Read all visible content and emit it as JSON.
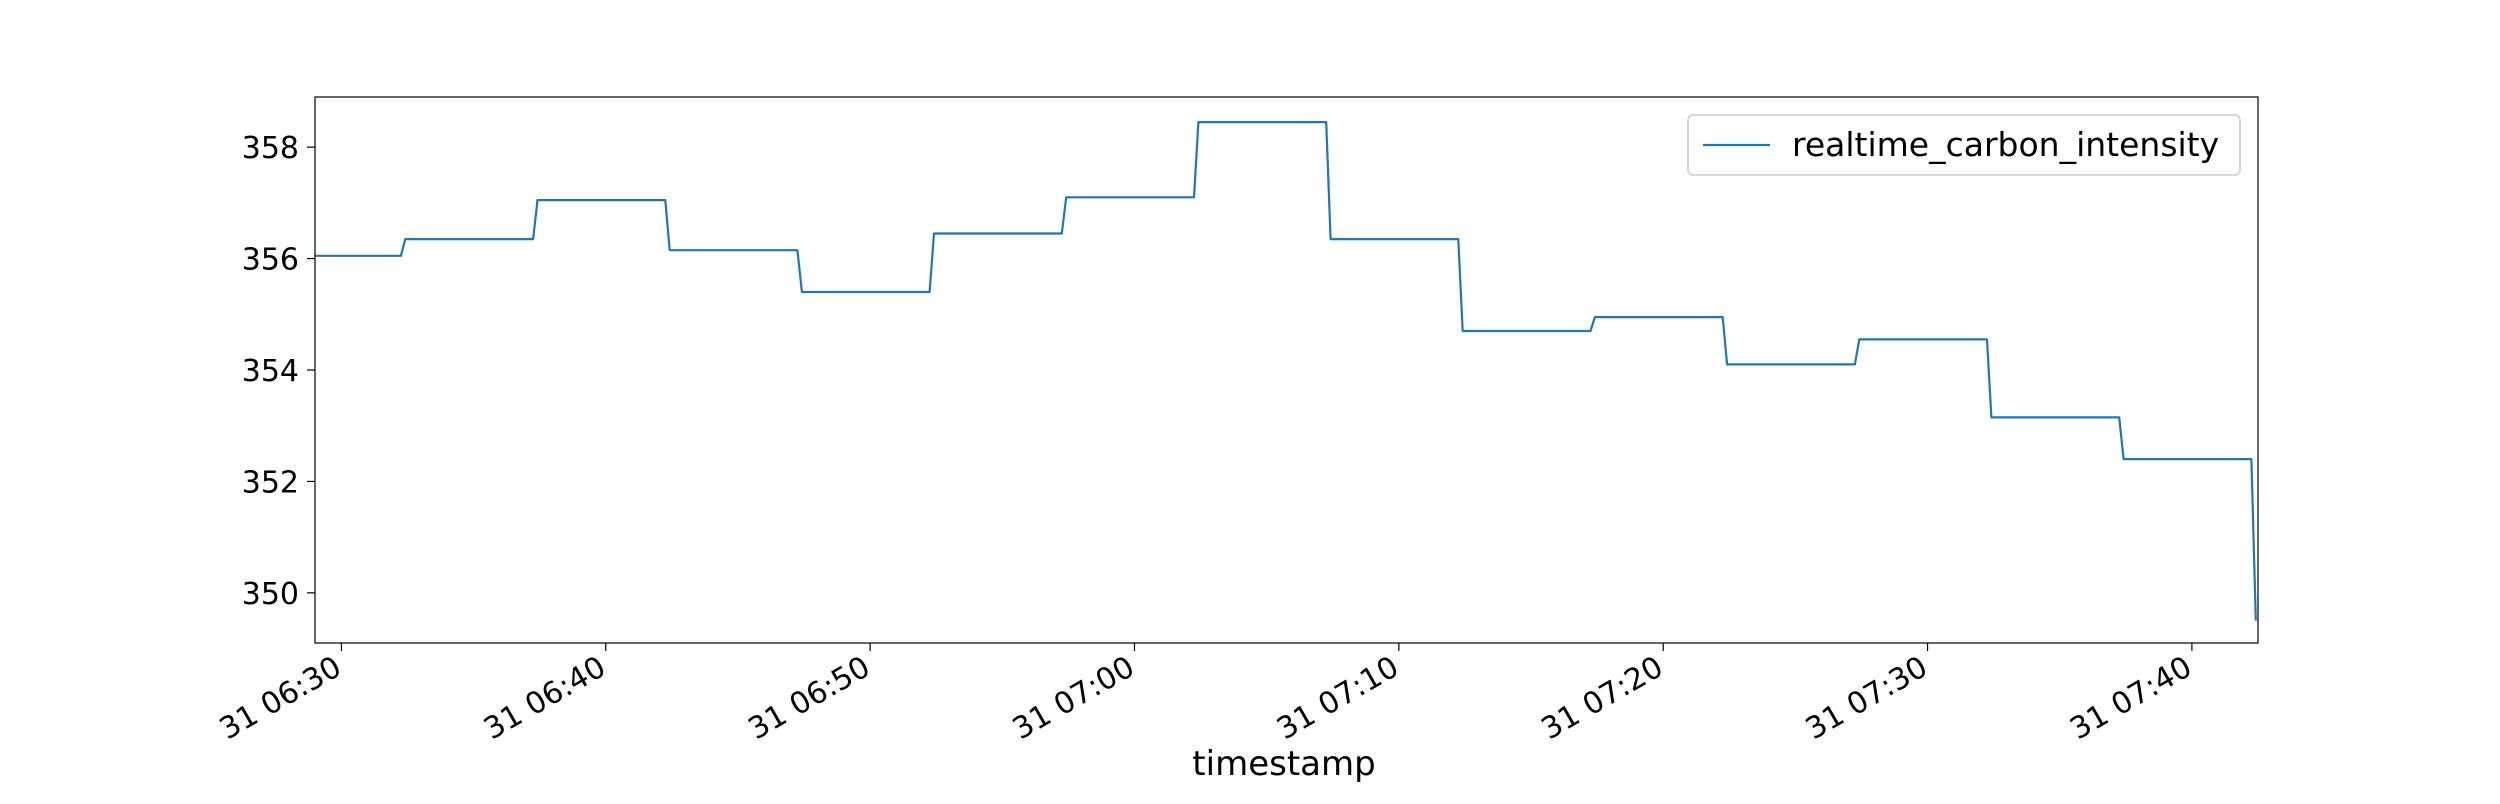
{
  "chart_data": {
    "type": "line",
    "xlabel": "timestamp",
    "ylabel": "",
    "title": "",
    "legend": {
      "placement": "top-right",
      "entries": [
        "realtime_carbon_intensity"
      ]
    },
    "grid": false,
    "xlim": [
      "31 06:29:00",
      "31 07:42:30"
    ],
    "ylim": [
      349.1,
      358.9
    ],
    "x_ticks": [
      {
        "t": "31 06:30:00",
        "label": "31 06:30"
      },
      {
        "t": "31 06:40:00",
        "label": "31 06:40"
      },
      {
        "t": "31 06:50:00",
        "label": "31 06:50"
      },
      {
        "t": "31 07:00:00",
        "label": "31 07:00"
      },
      {
        "t": "31 07:10:00",
        "label": "31 07:10"
      },
      {
        "t": "31 07:20:00",
        "label": "31 07:20"
      },
      {
        "t": "31 07:30:00",
        "label": "31 07:30"
      },
      {
        "t": "31 07:40:00",
        "label": "31 07:40"
      }
    ],
    "y_ticks": [
      {
        "v": 350,
        "label": "350"
      },
      {
        "v": 352,
        "label": "352"
      },
      {
        "v": 354,
        "label": "354"
      },
      {
        "v": 356,
        "label": "356"
      },
      {
        "v": 358,
        "label": "358"
      }
    ],
    "series": [
      {
        "name": "realtime_carbon_intensity",
        "color": "#1f77b4",
        "points": [
          {
            "x": "31 06:29:00",
            "y": 356.05
          },
          {
            "x": "31 06:32:15",
            "y": 356.05
          },
          {
            "x": "31 06:32:25",
            "y": 356.35
          },
          {
            "x": "31 06:37:15",
            "y": 356.35
          },
          {
            "x": "31 06:37:25",
            "y": 357.05
          },
          {
            "x": "31 06:42:15",
            "y": 357.05
          },
          {
            "x": "31 06:42:25",
            "y": 356.15
          },
          {
            "x": "31 06:47:15",
            "y": 356.15
          },
          {
            "x": "31 06:47:25",
            "y": 355.4
          },
          {
            "x": "31 06:52:15",
            "y": 355.4
          },
          {
            "x": "31 06:52:25",
            "y": 356.45
          },
          {
            "x": "31 06:57:15",
            "y": 356.45
          },
          {
            "x": "31 06:57:25",
            "y": 357.1
          },
          {
            "x": "31 07:02:15",
            "y": 357.1
          },
          {
            "x": "31 07:02:25",
            "y": 358.45
          },
          {
            "x": "31 07:07:15",
            "y": 358.45
          },
          {
            "x": "31 07:07:25",
            "y": 356.35
          },
          {
            "x": "31 07:12:15",
            "y": 356.35
          },
          {
            "x": "31 07:12:25",
            "y": 354.7
          },
          {
            "x": "31 07:17:15",
            "y": 354.7
          },
          {
            "x": "31 07:17:25",
            "y": 354.95
          },
          {
            "x": "31 07:22:15",
            "y": 354.95
          },
          {
            "x": "31 07:22:25",
            "y": 354.1
          },
          {
            "x": "31 07:27:15",
            "y": 354.1
          },
          {
            "x": "31 07:27:25",
            "y": 354.55
          },
          {
            "x": "31 07:32:15",
            "y": 354.55
          },
          {
            "x": "31 07:32:25",
            "y": 353.15
          },
          {
            "x": "31 07:37:15",
            "y": 353.15
          },
          {
            "x": "31 07:37:25",
            "y": 352.4
          },
          {
            "x": "31 07:42:15",
            "y": 352.4
          },
          {
            "x": "31 07:42:25",
            "y": 349.5
          }
        ]
      }
    ]
  }
}
